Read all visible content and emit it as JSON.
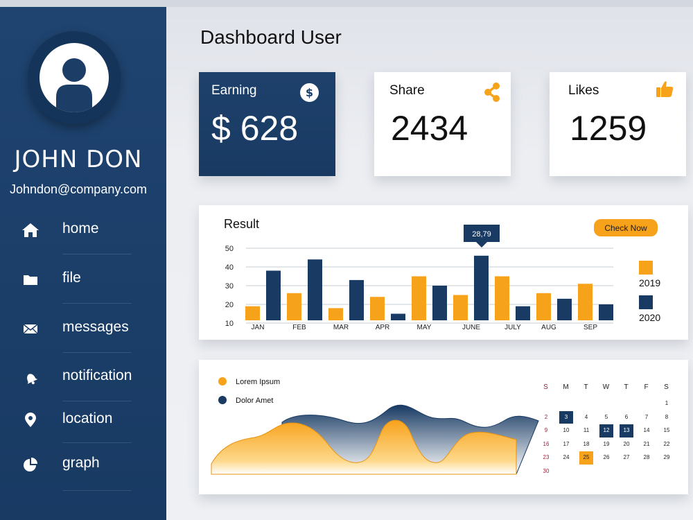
{
  "user": {
    "name": "JOHN DON",
    "email": "Johndon@company.com"
  },
  "nav": [
    {
      "label": "home",
      "icon": "home-icon"
    },
    {
      "label": "file",
      "icon": "folder-icon"
    },
    {
      "label": "messages",
      "icon": "envelope-icon"
    },
    {
      "label": "notification",
      "icon": "bell-icon"
    },
    {
      "label": "location",
      "icon": "location-pin-icon"
    },
    {
      "label": "graph",
      "icon": "pie-chart-icon"
    }
  ],
  "page_title": "Dashboard User",
  "stats": {
    "earning": {
      "label": "Earning",
      "value": "$ 628",
      "icon_text": "$"
    },
    "share": {
      "label": "Share",
      "value": "2434"
    },
    "likes": {
      "label": "Likes",
      "value": "1259"
    }
  },
  "colors": {
    "navy": "#183a63",
    "orange": "#f7a21b",
    "white": "#ffffff"
  },
  "result": {
    "title": "Result",
    "button": "Check Now",
    "tooltip": "28,79"
  },
  "chart_data": {
    "type": "bar",
    "title": "Result",
    "categories": [
      "JAN",
      "FEB",
      "MAR",
      "APR",
      "MAY",
      "JUNE",
      "JULY",
      "AUG",
      "SEP"
    ],
    "series": [
      {
        "name": "2019",
        "values": [
          19,
          26,
          18,
          24,
          35,
          25,
          35,
          26,
          31
        ]
      },
      {
        "name": "2020",
        "values": [
          38,
          44,
          33,
          15,
          30,
          46,
          19,
          23,
          20
        ]
      }
    ],
    "yticks": [
      "10",
      "20",
      "30",
      "40",
      "50"
    ],
    "ylim": [
      10,
      50
    ],
    "grid": true,
    "legend": "right"
  },
  "wave": {
    "legend": [
      {
        "name": "Lorem Ipsum",
        "color": "#f7a21b"
      },
      {
        "name": "Dolor Amet",
        "color": "#183a63"
      }
    ]
  },
  "calendar": {
    "weekdays": [
      "S",
      "M",
      "T",
      "W",
      "T",
      "F",
      "S"
    ],
    "weeks": [
      [
        "",
        "",
        "",
        "",
        "",
        "",
        "1"
      ],
      [
        "2",
        "3",
        "4",
        "5",
        "6",
        "7",
        "8"
      ],
      [
        "9",
        "10",
        "11",
        "12",
        "13",
        "14",
        "15"
      ],
      [
        "16",
        "17",
        "18",
        "19",
        "20",
        "21",
        "22"
      ],
      [
        "23",
        "24",
        "25",
        "26",
        "27",
        "28",
        "29"
      ],
      [
        "30",
        "",
        "",
        "",
        "",
        "",
        ""
      ]
    ],
    "highlight_navy": [
      "3",
      "12",
      "13"
    ],
    "highlight_orange": [
      "25"
    ]
  }
}
